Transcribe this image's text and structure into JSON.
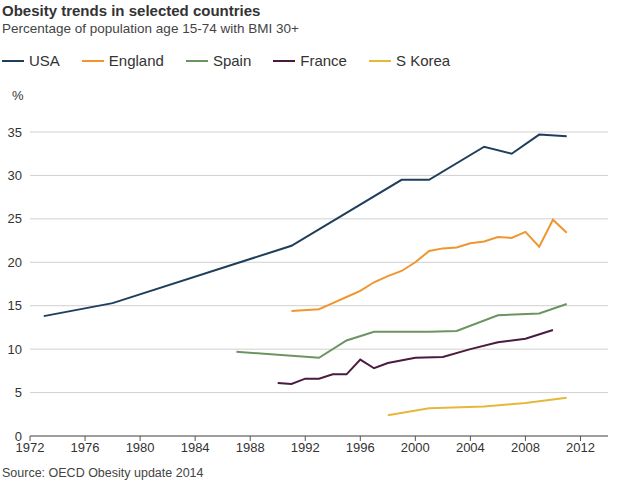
{
  "chart_data": {
    "type": "line",
    "title": "Obesity trends in selected countries",
    "subtitle": "Percentage of population age 15-74 with BMI 30+",
    "y_label": "%",
    "source": "Source: OECD Obesity update 2014",
    "legend": "top left",
    "grid": true,
    "xlim": [
      1972,
      2014
    ],
    "xticks": [
      1972,
      1976,
      1980,
      1984,
      1988,
      1992,
      1996,
      2000,
      2004,
      2008,
      2012
    ],
    "ylim": [
      0,
      35
    ],
    "yticks": [
      0,
      5,
      10,
      15,
      20,
      25,
      30,
      35
    ],
    "series": [
      {
        "name": "USA",
        "color": "#1f3e5c",
        "x": [
          1973,
          1978,
          1991,
          1999,
          2001,
          2005,
          2007,
          2009,
          2011
        ],
        "values": [
          13.8,
          15.3,
          21.9,
          29.5,
          29.5,
          33.3,
          32.5,
          34.7,
          34.5
        ]
      },
      {
        "name": "England",
        "color": "#f0962e",
        "x": [
          1991,
          1993,
          1994,
          1995,
          1996,
          1997,
          1998,
          1999,
          2000,
          2001,
          2002,
          2003,
          2004,
          2005,
          2006,
          2007,
          2008,
          2009,
          2010,
          2011
        ],
        "values": [
          14.4,
          14.6,
          15.3,
          16.0,
          16.7,
          17.7,
          18.4,
          19.0,
          20.0,
          21.3,
          21.6,
          21.7,
          22.2,
          22.4,
          22.9,
          22.8,
          23.5,
          21.8,
          24.9,
          23.4
        ]
      },
      {
        "name": "Spain",
        "color": "#6b9560",
        "x": [
          1987,
          1993,
          1995,
          1997,
          2001,
          2003,
          2006,
          2009,
          2011
        ],
        "values": [
          9.7,
          9.0,
          11.0,
          12.0,
          12.0,
          12.1,
          13.9,
          14.1,
          15.2
        ]
      },
      {
        "name": "France",
        "color": "#4b1a3f",
        "x": [
          1990,
          1991,
          1992,
          1993,
          1994,
          1995,
          1996,
          1997,
          1998,
          2000,
          2002,
          2004,
          2006,
          2008,
          2010
        ],
        "values": [
          6.1,
          6.0,
          6.6,
          6.6,
          7.1,
          7.1,
          8.8,
          7.8,
          8.4,
          9.0,
          9.1,
          10.0,
          10.8,
          11.2,
          12.2
        ]
      },
      {
        "name": "S Korea",
        "color": "#e6b83a",
        "x": [
          1998,
          2001,
          2005,
          2008,
          2011
        ],
        "values": [
          2.4,
          3.2,
          3.4,
          3.8,
          4.4
        ]
      }
    ]
  }
}
